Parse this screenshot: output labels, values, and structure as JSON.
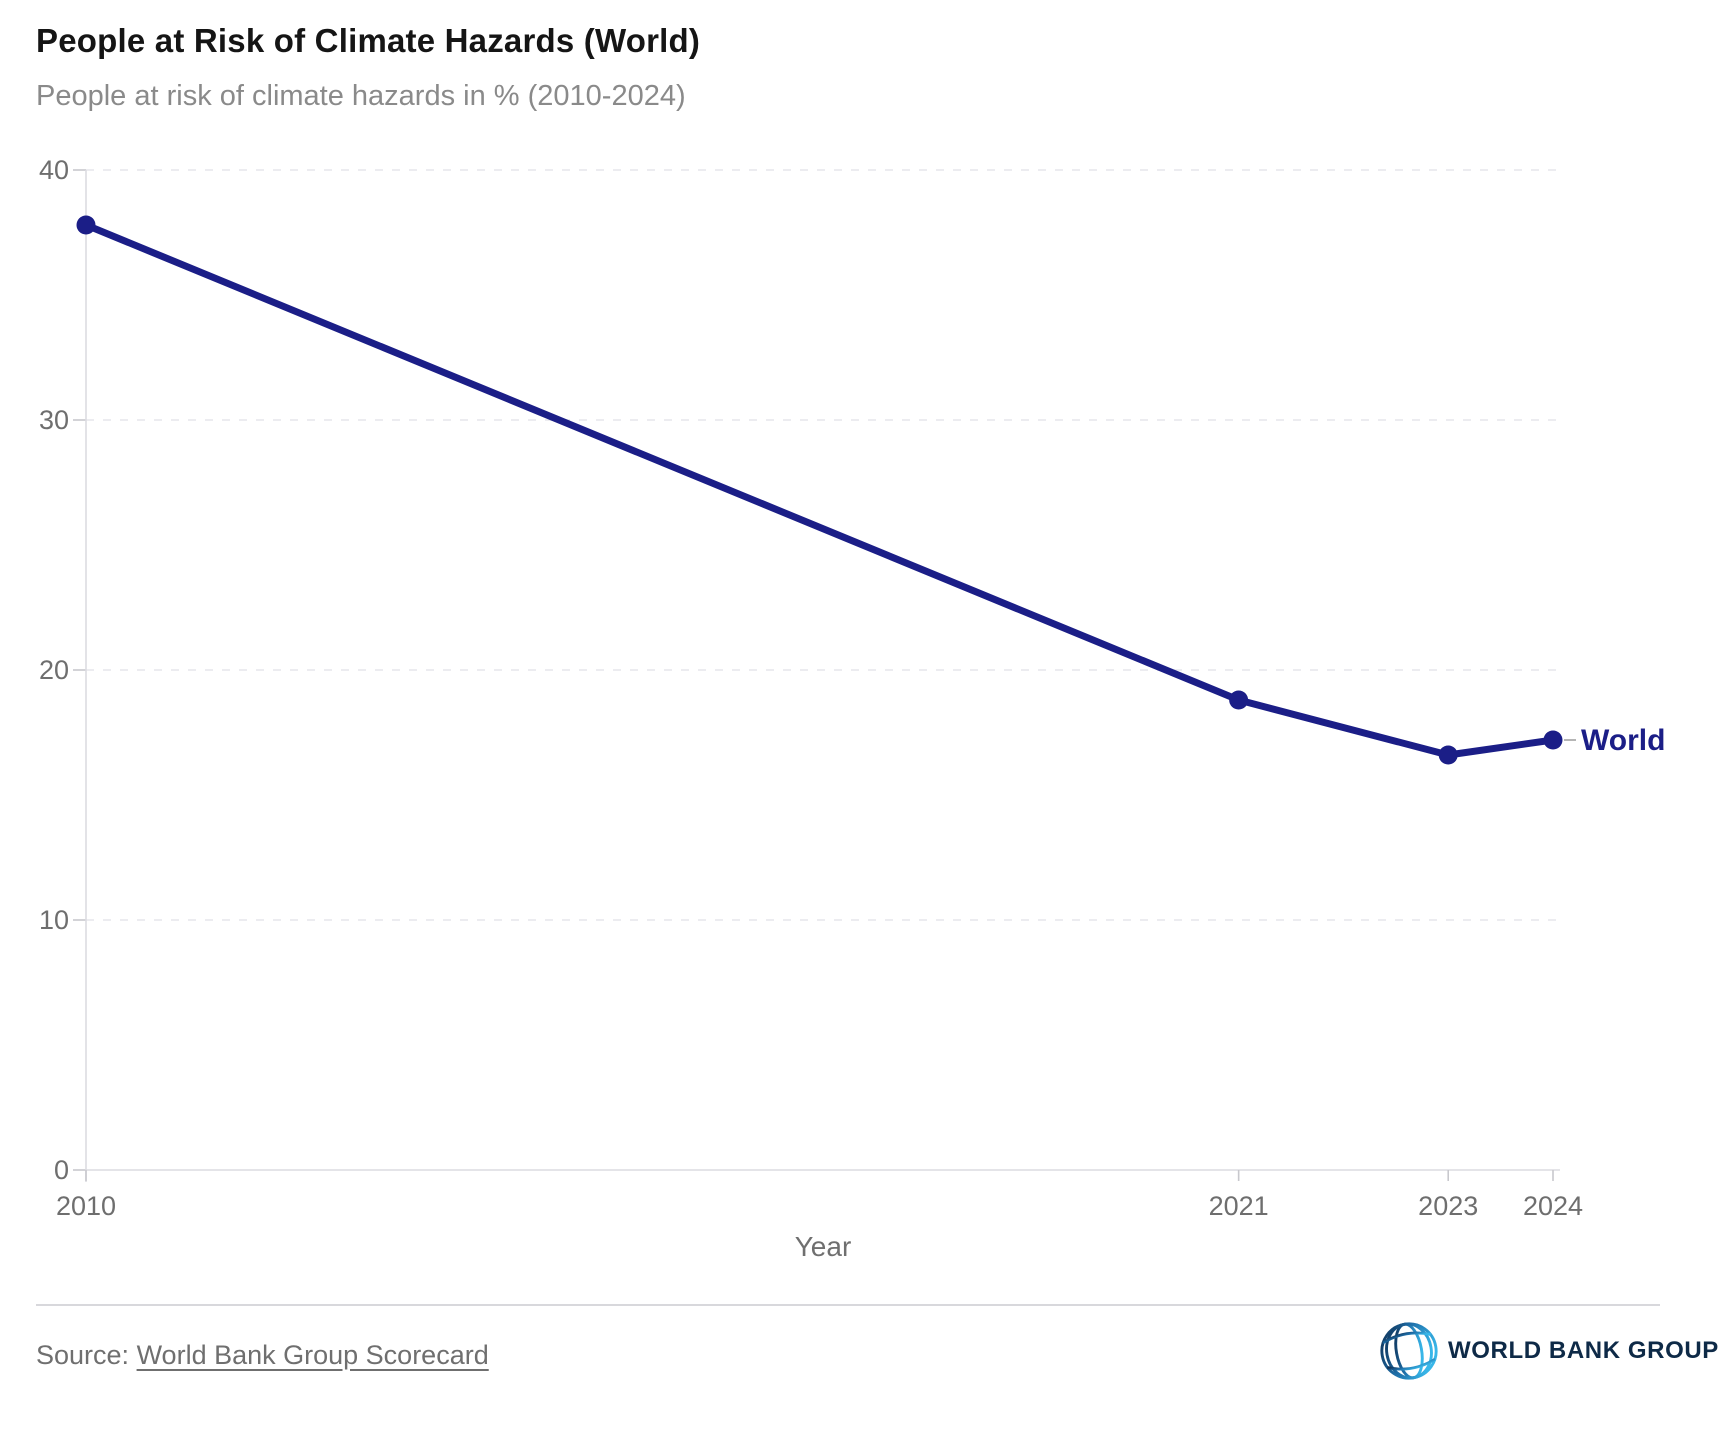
{
  "header": {
    "title": "People at Risk of Climate Hazards (World)",
    "subtitle": "People at risk of climate hazards in % (2010-2024)"
  },
  "chart_data": {
    "type": "line",
    "title": "People at Risk of Climate Hazards (World)",
    "subtitle": "People at risk of climate hazards in % (2010-2024)",
    "xlabel": "Year",
    "ylabel": "",
    "series": [
      {
        "name": "World",
        "color": "#1b1e87",
        "x": [
          2010,
          2021,
          2023,
          2024
        ],
        "values": [
          37.8,
          18.8,
          16.6,
          17.2
        ]
      }
    ],
    "x_ticks": [
      2010,
      2021,
      2023,
      2024
    ],
    "y_ticks": [
      0,
      10,
      20,
      30,
      40
    ],
    "xlim": [
      2010,
      2024.1
    ],
    "ylim": [
      0,
      40
    ],
    "grid": "horizontal-dashed",
    "legend_position": "line-end-label",
    "colors": {
      "grid": "#e5e5eb",
      "axis": "#dcdce1",
      "tick": "#c8c8cd",
      "tick_label": "#6e6e6e",
      "axis_title": "#6f6f6f"
    }
  },
  "footer": {
    "source_prefix": "Source: ",
    "source_link": "World Bank Group Scorecard",
    "logo_text": "WORLD BANK GROUP"
  }
}
